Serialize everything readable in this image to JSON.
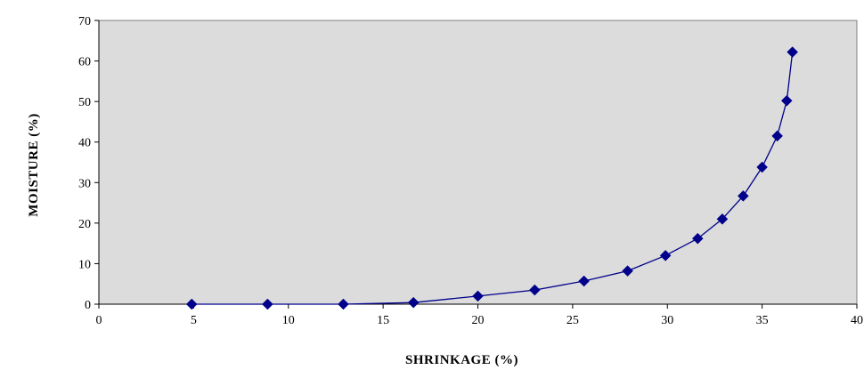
{
  "chart_data": {
    "type": "line",
    "title": "",
    "xlabel": "SHRINKAGE  (%)",
    "ylabel": "MOISTURE  (%)",
    "xlim": [
      0,
      40
    ],
    "ylim": [
      0,
      70
    ],
    "xticks": [
      "0",
      "5",
      "10",
      "15",
      "20",
      "25",
      "30",
      "35",
      "40"
    ],
    "yticks": [
      "0",
      "10",
      "20",
      "30",
      "40",
      "50",
      "60",
      "70"
    ],
    "grid": false,
    "legend": "none",
    "plot_background": "#dcdcdc",
    "series": [
      {
        "color": "#00008b",
        "marker": "diamond",
        "points": [
          {
            "x": 4.9,
            "y": 0
          },
          {
            "x": 8.9,
            "y": 0
          },
          {
            "x": 12.9,
            "y": 0
          },
          {
            "x": 16.6,
            "y": 0.4
          },
          {
            "x": 20.0,
            "y": 2.0
          },
          {
            "x": 23.0,
            "y": 3.5
          },
          {
            "x": 25.6,
            "y": 5.7
          },
          {
            "x": 27.9,
            "y": 8.2
          },
          {
            "x": 29.9,
            "y": 12.0
          },
          {
            "x": 31.6,
            "y": 16.2
          },
          {
            "x": 32.9,
            "y": 21.0
          },
          {
            "x": 34.0,
            "y": 26.7
          },
          {
            "x": 35.0,
            "y": 33.8
          },
          {
            "x": 35.8,
            "y": 41.5
          },
          {
            "x": 36.3,
            "y": 50.2
          },
          {
            "x": 36.6,
            "y": 62.2
          }
        ]
      }
    ]
  }
}
